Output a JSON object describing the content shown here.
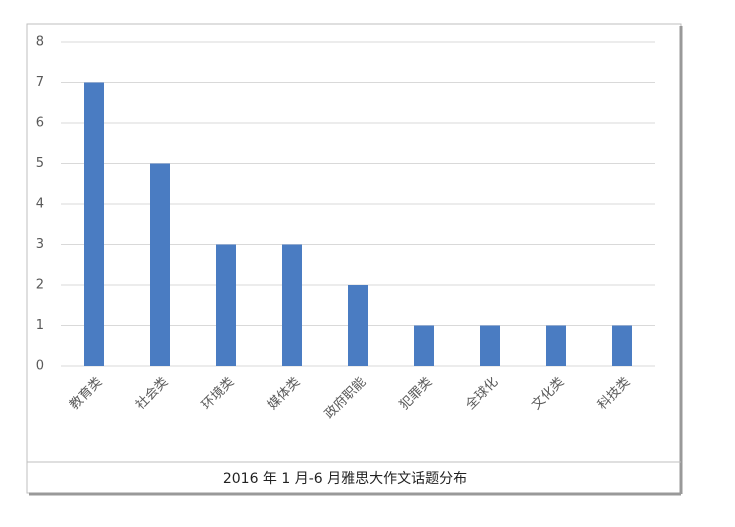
{
  "chart_data": {
    "type": "bar",
    "title": "2016 年 1 月-6 月雅思大作文话题分布",
    "categories": [
      "教育类",
      "社会类",
      "环境类",
      "媒体类",
      "政府职能",
      "犯罪类",
      "全球化",
      "文化类",
      "科技类"
    ],
    "values": [
      7,
      5,
      3,
      3,
      2,
      1,
      1,
      1,
      1
    ],
    "color": "#4a7cc2",
    "ylim": [
      0,
      8
    ],
    "yticks": [
      0,
      1,
      2,
      3,
      4,
      5,
      6,
      7,
      8
    ],
    "grid": true
  }
}
